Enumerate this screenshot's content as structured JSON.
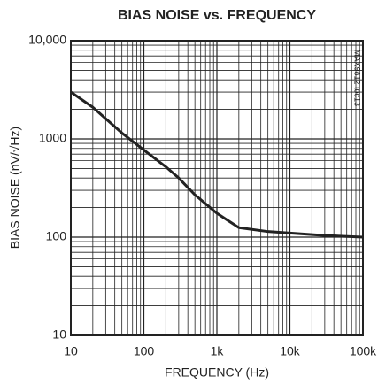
{
  "chart_data": {
    "type": "line",
    "title": "BIAS NOISE vs. FREQUENCY",
    "x_label": "FREQUENCY (Hz)",
    "y_label": "BIAS NOISE (nV/√Hz)",
    "annotation": "MAX9812 toc13",
    "x": [
      10,
      20,
      50,
      100,
      200,
      300,
      500,
      1000,
      2000,
      5000,
      10000,
      30000,
      100000
    ],
    "series": [
      {
        "name": "BIAS NOISE",
        "color": "#222222",
        "values": [
          3000,
          2100,
          1150,
          770,
          520,
          400,
          270,
          175,
          125,
          114,
          110,
          104,
          100
        ]
      }
    ],
    "xlim": [
      10,
      100000
    ],
    "ylim": [
      10,
      10000
    ],
    "xticks": [
      10,
      100,
      {
        "value": 1000,
        "label": "1k"
      },
      {
        "value": 10000,
        "label": "10k"
      },
      {
        "value": 100000,
        "label": "100k"
      }
    ],
    "yticks": [
      10,
      100,
      1000,
      {
        "value": 10000,
        "label": "10,000"
      }
    ],
    "xscale": "log",
    "yscale": "log",
    "grid": true,
    "minor_grid": true
  }
}
